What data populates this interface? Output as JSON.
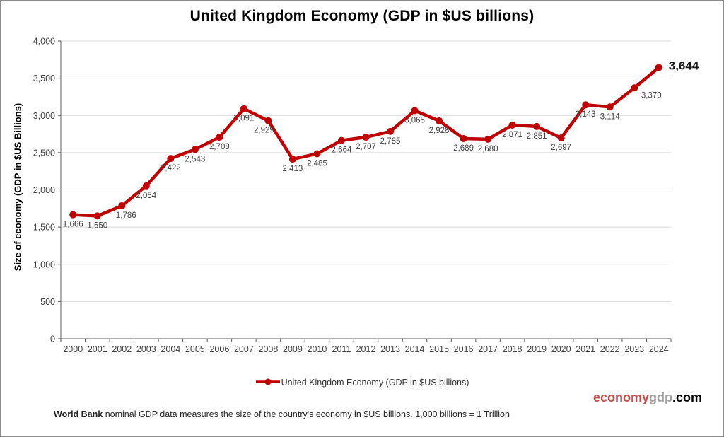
{
  "title": "United Kingdom Economy (GDP in $US billions)",
  "y_axis_title": "Size of economy (GDP in $US Billions)",
  "legend": {
    "label": "United Kingdom Economy (GDP in $US billions)"
  },
  "footnote": {
    "bold": "World Bank",
    "text": " nominal GDP data  measures the size of the country's economy in $US billions. 1,000 billions = 1 Trillion"
  },
  "watermark": {
    "part1": "economy",
    "part2": "gdp",
    "part3": ".com",
    "color1": "#c0504d",
    "color2": "#a0a0a0",
    "color3": "#000000"
  },
  "chart_data": {
    "type": "line",
    "title": "United Kingdom Economy (GDP in $US billions)",
    "xlabel": "",
    "ylabel": "Size of economy (GDP in $US Billions)",
    "ylim": [
      0,
      4000
    ],
    "ytick_step": 500,
    "grid": true,
    "legend_position": "bottom",
    "categories": [
      2000,
      2001,
      2002,
      2003,
      2004,
      2005,
      2006,
      2007,
      2008,
      2009,
      2010,
      2011,
      2012,
      2013,
      2014,
      2015,
      2016,
      2017,
      2018,
      2019,
      2020,
      2021,
      2022,
      2023,
      2024
    ],
    "series": [
      {
        "name": "United Kingdom Economy (GDP in $US billions)",
        "color": "#c00000",
        "values": [
          1666,
          1650,
          1786,
          2054,
          2422,
          2543,
          2708,
          3091,
          2929,
          2413,
          2485,
          2664,
          2707,
          2785,
          3065,
          2928,
          2689,
          2680,
          2871,
          2851,
          2697,
          3143,
          3114,
          3370,
          3644
        ]
      }
    ],
    "final_value_emphasized": "3,644"
  }
}
